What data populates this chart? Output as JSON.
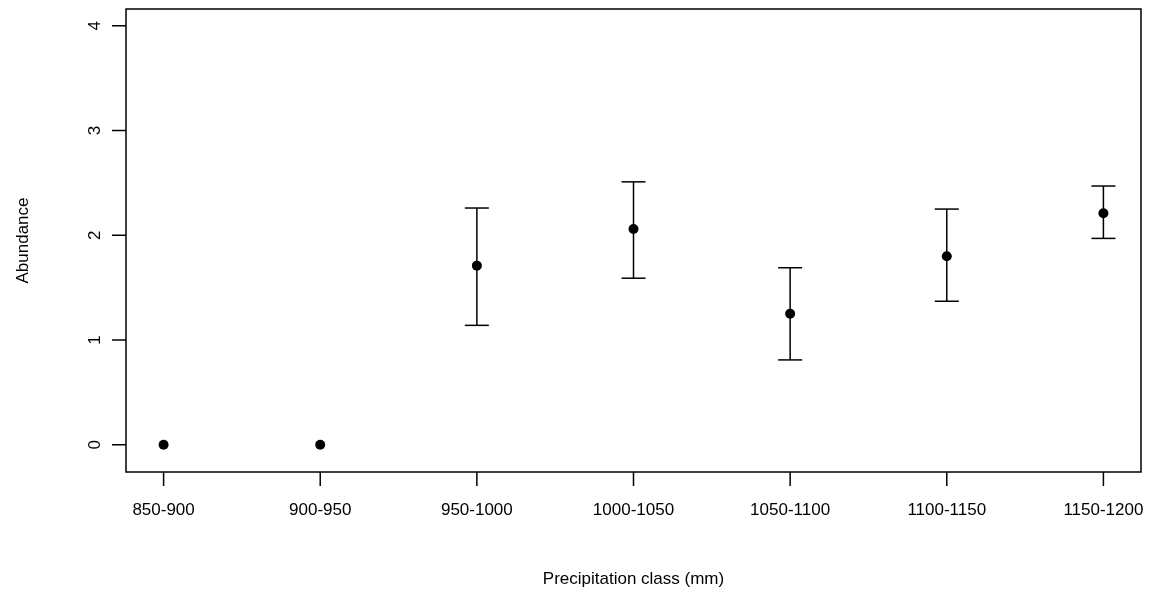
{
  "chart_data": {
    "type": "scatter",
    "xlabel": "Precipitation class (mm)",
    "ylabel": "Abundance",
    "categories": [
      "850-900",
      "900-950",
      "950-1000",
      "1000-1050",
      "1050-1100",
      "1100-1150",
      "1150-1200"
    ],
    "values": [
      0,
      0,
      1.71,
      2.06,
      1.25,
      1.8,
      2.21
    ],
    "errors": [
      null,
      null,
      [
        1.14,
        2.26
      ],
      [
        1.59,
        2.51
      ],
      [
        0.81,
        1.69
      ],
      [
        1.37,
        2.25
      ],
      [
        1.97,
        2.47
      ]
    ],
    "color": "#000000",
    "marker": "circle",
    "ylim": [
      -0.26,
      4.16
    ],
    "yticks": [
      0,
      1,
      2,
      3,
      4
    ],
    "grid": false
  }
}
